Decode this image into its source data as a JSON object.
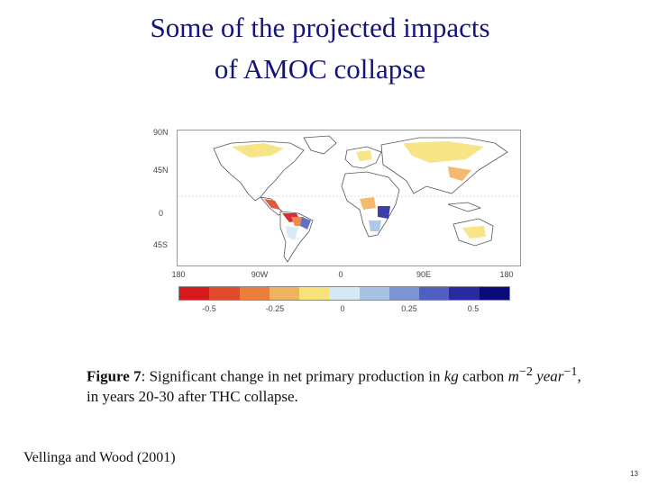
{
  "slide": {
    "title_line1": "Some of the projected impacts",
    "title_line2": "of AMOC collapse",
    "reference": "Vellinga and Wood (2001)",
    "page_number": "13"
  },
  "figure": {
    "lat_labels": [
      "90N",
      "45N",
      "0",
      "45S"
    ],
    "lon_labels": [
      "180",
      "90W",
      "0",
      "90E",
      "180"
    ],
    "colorbar_colors": [
      "#d7191c",
      "#e04a2a",
      "#ea7e3c",
      "#f0b35f",
      "#f7e27a",
      "#d6e8f4",
      "#a6c3e6",
      "#7b95d6",
      "#5060c0",
      "#2a2aa0",
      "#0a0a7a"
    ],
    "colorbar_labels": [
      "-0.5",
      "-0.25",
      "0",
      "0.25",
      "0.5"
    ]
  },
  "caption": {
    "fig_label": "Figure 7",
    "text_a": ": Significant change in net primary production in ",
    "unit_kg": "kg",
    "text_b": " carbon ",
    "unit_m": "m",
    "exp1": "−2",
    "unit_year": " year",
    "exp2": "−1",
    "text_c": ",",
    "line2": "in years 20-30 after THC collapse."
  }
}
